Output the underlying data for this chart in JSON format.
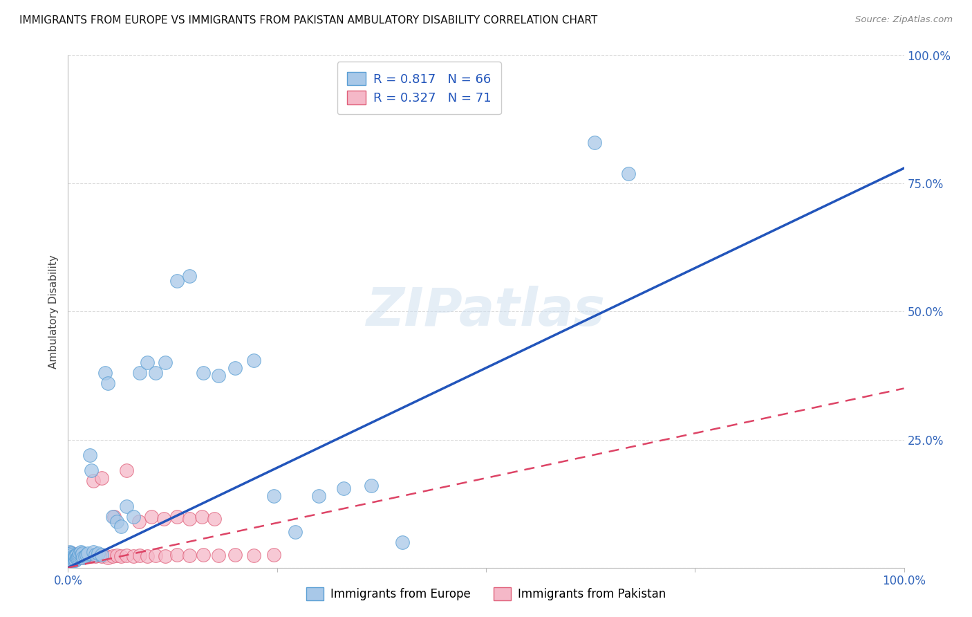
{
  "title": "IMMIGRANTS FROM EUROPE VS IMMIGRANTS FROM PAKISTAN AMBULATORY DISABILITY CORRELATION CHART",
  "source": "Source: ZipAtlas.com",
  "ylabel": "Ambulatory Disability",
  "xlim": [
    0,
    1
  ],
  "ylim": [
    0,
    1
  ],
  "europe_color": "#a8c8e8",
  "europe_edge_color": "#5a9fd4",
  "pakistan_color": "#f5b8c8",
  "pakistan_edge_color": "#e0607a",
  "europe_line_color": "#2255bb",
  "pakistan_line_color": "#dd4466",
  "europe_R": 0.817,
  "europe_N": 66,
  "pakistan_R": 0.327,
  "pakistan_N": 71,
  "legend_label_europe": "Immigrants from Europe",
  "legend_label_pakistan": "Immigrants from Pakistan",
  "background_color": "#ffffff",
  "grid_color": "#cccccc",
  "watermark_text": "ZIPatlas",
  "europe_scatter_x": [
    0.001,
    0.001,
    0.002,
    0.002,
    0.002,
    0.003,
    0.003,
    0.003,
    0.004,
    0.004,
    0.004,
    0.005,
    0.005,
    0.005,
    0.006,
    0.006,
    0.007,
    0.007,
    0.008,
    0.008,
    0.009,
    0.009,
    0.01,
    0.01,
    0.011,
    0.012,
    0.013,
    0.014,
    0.015,
    0.016,
    0.017,
    0.018,
    0.02,
    0.022,
    0.024,
    0.026,
    0.028,
    0.03,
    0.033,
    0.036,
    0.04,
    0.044,
    0.048,
    0.053,
    0.058,
    0.063,
    0.07,
    0.078,
    0.086,
    0.095,
    0.105,
    0.116,
    0.13,
    0.145,
    0.162,
    0.18,
    0.2,
    0.222,
    0.246,
    0.272,
    0.3,
    0.33,
    0.363,
    0.4,
    0.63,
    0.67
  ],
  "europe_scatter_y": [
    0.02,
    0.025,
    0.018,
    0.022,
    0.03,
    0.015,
    0.02,
    0.028,
    0.018,
    0.022,
    0.028,
    0.015,
    0.02,
    0.025,
    0.018,
    0.023,
    0.015,
    0.02,
    0.018,
    0.023,
    0.015,
    0.022,
    0.018,
    0.025,
    0.02,
    0.022,
    0.025,
    0.028,
    0.03,
    0.025,
    0.028,
    0.02,
    0.022,
    0.025,
    0.028,
    0.22,
    0.19,
    0.03,
    0.025,
    0.028,
    0.025,
    0.38,
    0.36,
    0.1,
    0.09,
    0.08,
    0.12,
    0.1,
    0.38,
    0.4,
    0.38,
    0.4,
    0.56,
    0.57,
    0.38,
    0.375,
    0.39,
    0.405,
    0.14,
    0.07,
    0.14,
    0.155,
    0.16,
    0.05,
    0.83,
    0.77
  ],
  "pakistan_scatter_x": [
    0.001,
    0.001,
    0.001,
    0.002,
    0.002,
    0.002,
    0.003,
    0.003,
    0.003,
    0.004,
    0.004,
    0.004,
    0.005,
    0.005,
    0.005,
    0.006,
    0.006,
    0.007,
    0.007,
    0.008,
    0.008,
    0.009,
    0.009,
    0.01,
    0.01,
    0.011,
    0.012,
    0.013,
    0.014,
    0.015,
    0.016,
    0.017,
    0.018,
    0.02,
    0.022,
    0.024,
    0.026,
    0.028,
    0.03,
    0.033,
    0.036,
    0.04,
    0.044,
    0.048,
    0.053,
    0.058,
    0.063,
    0.07,
    0.078,
    0.086,
    0.095,
    0.105,
    0.116,
    0.13,
    0.145,
    0.162,
    0.18,
    0.2,
    0.222,
    0.246,
    0.03,
    0.04,
    0.055,
    0.07,
    0.085,
    0.1,
    0.115,
    0.13,
    0.145,
    0.16,
    0.175
  ],
  "pakistan_scatter_y": [
    0.018,
    0.022,
    0.028,
    0.018,
    0.022,
    0.028,
    0.018,
    0.022,
    0.028,
    0.018,
    0.022,
    0.028,
    0.018,
    0.022,
    0.028,
    0.018,
    0.022,
    0.018,
    0.022,
    0.018,
    0.022,
    0.018,
    0.022,
    0.018,
    0.022,
    0.02,
    0.022,
    0.024,
    0.022,
    0.024,
    0.022,
    0.024,
    0.02,
    0.022,
    0.024,
    0.022,
    0.024,
    0.022,
    0.024,
    0.022,
    0.024,
    0.022,
    0.024,
    0.02,
    0.022,
    0.024,
    0.022,
    0.024,
    0.022,
    0.024,
    0.022,
    0.024,
    0.022,
    0.025,
    0.024,
    0.025,
    0.024,
    0.025,
    0.024,
    0.025,
    0.17,
    0.175,
    0.1,
    0.19,
    0.09,
    0.1,
    0.095,
    0.1,
    0.095,
    0.1,
    0.095
  ],
  "europe_line_x0": 0.0,
  "europe_line_y0": 0.0,
  "europe_line_x1": 1.0,
  "europe_line_y1": 0.78,
  "pakistan_line_x0": 0.0,
  "pakistan_line_y0": 0.0,
  "pakistan_line_x1": 1.0,
  "pakistan_line_y1": 0.35
}
